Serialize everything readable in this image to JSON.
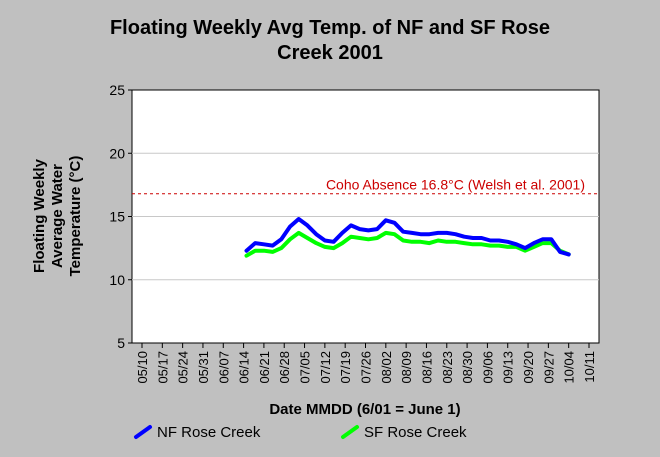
{
  "chart_data": {
    "type": "line",
    "title": "Floating Weekly Avg Temp. of NF and SF Rose\nCreek 2001",
    "xlabel": "Date MMDD (6/01 = June 1)",
    "ylabel": "Floating Weekly\nAverage Water\nTemperature (°C)",
    "ylim": [
      5,
      25
    ],
    "yticks": [
      5,
      10,
      15,
      20,
      25
    ],
    "xticks": [
      "05/10",
      "05/17",
      "05/24",
      "05/31",
      "06/07",
      "06/14",
      "06/21",
      "06/28",
      "07/05",
      "07/12",
      "07/19",
      "07/26",
      "08/02",
      "08/09",
      "08/16",
      "08/23",
      "08/30",
      "09/06",
      "09/13",
      "09/20",
      "09/27",
      "10/04",
      "10/11"
    ],
    "x_unit": "days from 05/10",
    "grid": "horizontal",
    "reference_line": {
      "value": 16.8,
      "label": "Coho Absence 16.8°C (Welsh et al. 2001)",
      "color": "#cc0000"
    },
    "legend_position": "bottom",
    "series": [
      {
        "name": "NF Rose Creek",
        "color": "#0000ff",
        "x": [
          36,
          39,
          42,
          45,
          48,
          51,
          54,
          57,
          60,
          63,
          66,
          69,
          72,
          75,
          78,
          81,
          84,
          87,
          90,
          93,
          96,
          99,
          102,
          105,
          108,
          111,
          114,
          117,
          120,
          123,
          126,
          129,
          132,
          135,
          138,
          141,
          144,
          147
        ],
        "values": [
          12.3,
          12.9,
          12.8,
          12.7,
          13.2,
          14.2,
          14.8,
          14.3,
          13.6,
          13.1,
          13.0,
          13.7,
          14.3,
          14.0,
          13.9,
          14.0,
          14.7,
          14.5,
          13.8,
          13.7,
          13.6,
          13.6,
          13.7,
          13.7,
          13.6,
          13.4,
          13.3,
          13.3,
          13.1,
          13.1,
          13.0,
          12.8,
          12.5,
          12.9,
          13.2,
          13.2,
          12.2,
          12.0
        ]
      },
      {
        "name": "SF Rose Creek",
        "color": "#00ff00",
        "x": [
          36,
          39,
          42,
          45,
          48,
          51,
          54,
          57,
          60,
          63,
          66,
          69,
          72,
          75,
          78,
          81,
          84,
          87,
          90,
          93,
          96,
          99,
          102,
          105,
          108,
          111,
          114,
          117,
          120,
          123,
          126,
          129,
          132,
          135,
          138,
          141,
          144,
          147
        ],
        "values": [
          11.9,
          12.3,
          12.3,
          12.2,
          12.5,
          13.2,
          13.7,
          13.3,
          12.9,
          12.6,
          12.5,
          12.9,
          13.4,
          13.3,
          13.2,
          13.3,
          13.7,
          13.6,
          13.1,
          13.0,
          13.0,
          12.9,
          13.1,
          13.0,
          13.0,
          12.9,
          12.8,
          12.8,
          12.7,
          12.7,
          12.6,
          12.6,
          12.3,
          12.6,
          12.9,
          12.9,
          12.3,
          12.0
        ]
      }
    ]
  }
}
